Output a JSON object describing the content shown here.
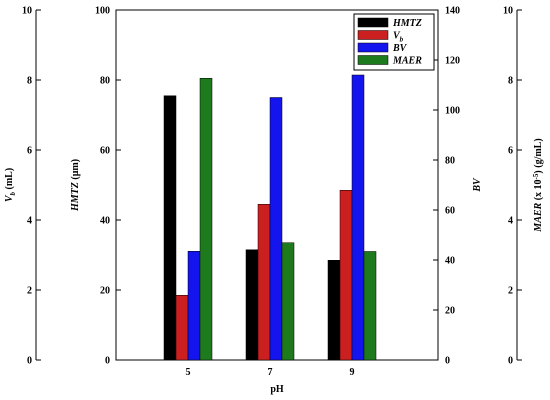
{
  "chart_data": {
    "type": "bar",
    "xlabel": "pH",
    "categories": [
      "5",
      "7",
      "9"
    ],
    "series": [
      {
        "name": "HMTZ",
        "axis": "hmtz",
        "color": "#000000",
        "values": [
          75.5,
          31.5,
          28.5
        ]
      },
      {
        "name": "V",
        "name_sub": "b",
        "axis": "vb",
        "color": "#cc1f1f",
        "values": [
          1.85,
          4.45,
          4.85
        ]
      },
      {
        "name": "BV",
        "axis": "bv",
        "color": "#1414ee",
        "values": [
          43.5,
          105,
          114
        ]
      },
      {
        "name": "MAER",
        "axis": "maer",
        "color": "#1d7a1d",
        "values": [
          8.05,
          3.35,
          3.1
        ]
      }
    ],
    "axes": {
      "vb": {
        "label": "V",
        "label_sub": "b",
        "label_rest": " (mL)",
        "ylim": [
          0,
          10
        ],
        "ticks": [
          "0",
          "2",
          "4",
          "6",
          "8",
          "10"
        ]
      },
      "hmtz": {
        "label": "HMTZ",
        "label_rest": " (μm)",
        "ylim": [
          0,
          100
        ],
        "ticks": [
          "0",
          "20",
          "40",
          "60",
          "80",
          "100"
        ]
      },
      "bv": {
        "label": "BV",
        "ylim": [
          0,
          140
        ],
        "ticks": [
          "0",
          "20",
          "40",
          "60",
          "80",
          "100",
          "120",
          "140"
        ]
      },
      "maer": {
        "label": "MAER",
        "label_mid": " (x 10",
        "label_sup": "-5",
        "label_rest": ") (g/mL)",
        "ylim": [
          0,
          10
        ],
        "ticks": [
          "0",
          "2",
          "4",
          "6",
          "8",
          "10"
        ]
      }
    },
    "legend": {
      "placement": "top-right"
    },
    "grid": false
  }
}
